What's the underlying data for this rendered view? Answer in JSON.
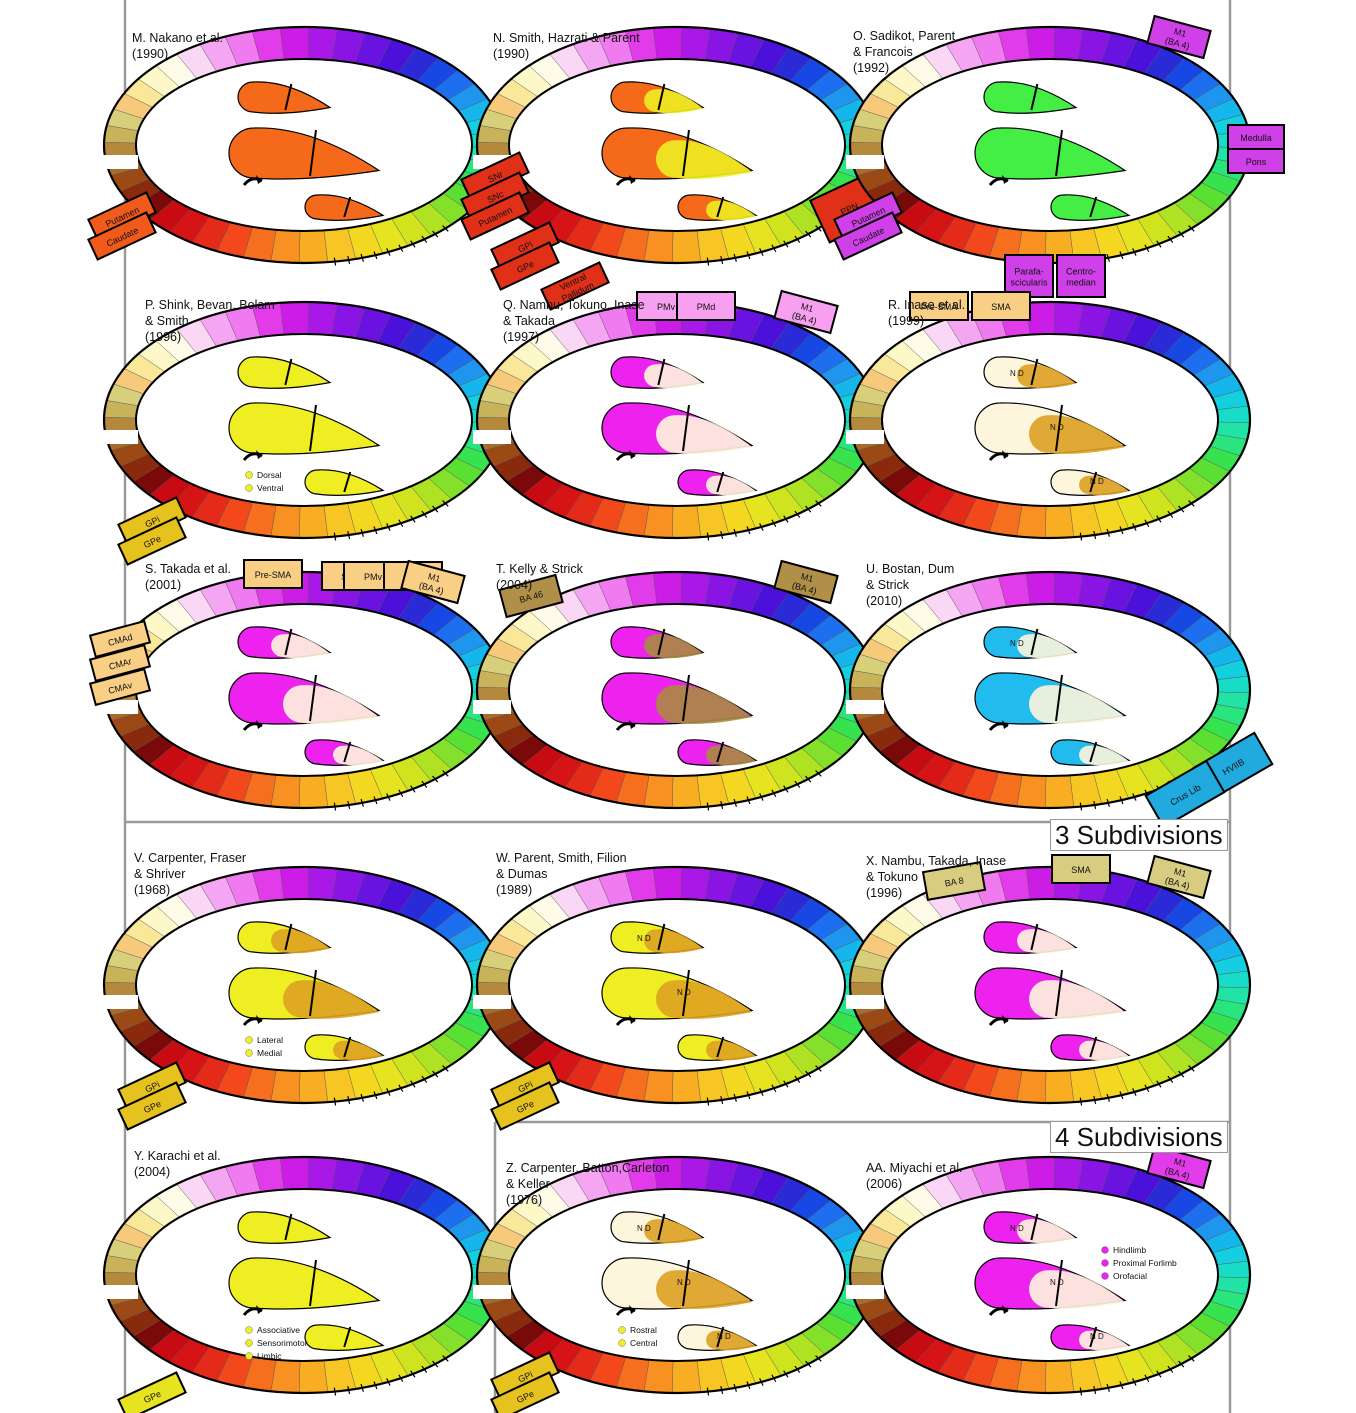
{
  "sections": {
    "three": "3 Subdivisions",
    "four": "4 Subdivisions"
  },
  "ring_colors": [
    "#7a0a0a",
    "#8a2a0c",
    "#9b4a16",
    "#a96b2c",
    "#b5893d",
    "#c9b35a",
    "#d8cf7a",
    "#f7c97a",
    "#f9e79a",
    "#fdf8c8",
    "#fefce9",
    "#fbd7f6",
    "#f5a6f2",
    "#f07aef",
    "#e23cea",
    "#cc1de6",
    "#a918e6",
    "#8a14e3",
    "#6a12e0",
    "#4b10d9",
    "#2a2ad6",
    "#1848e4",
    "#1e6ff0",
    "#1e96ee",
    "#15b6ec",
    "#13cfe0",
    "#18dcc7",
    "#20e3a5",
    "#2ae47d",
    "#37e24f",
    "#5ae033",
    "#84e02a",
    "#aee223",
    "#cfe31f",
    "#e6e320",
    "#f3d721",
    "#f8c624",
    "#f9ad22",
    "#f89121",
    "#f66f1e",
    "#f2481c",
    "#e42a18",
    "#d61415",
    "#c80b12"
  ],
  "colors": {
    "orange": "#f56a1a",
    "green": "#44ee44",
    "yellow": "#eeee22",
    "magenta": "#ee22ee",
    "blue": "#22bbee",
    "olive": "#a88a40",
    "cream": "#fdf6dc",
    "amber": "#dda122"
  },
  "panels": [
    {
      "id": "M",
      "title": "M. Nakano et al.\n(1990)",
      "labels": [
        {
          "text": "Putamen"
        },
        {
          "text": "Caudate"
        }
      ]
    },
    {
      "id": "N",
      "title": "N. Smith, Hazrati & Parent\n(1990)",
      "labels": [
        {
          "text": "SNr"
        },
        {
          "text": "SNc"
        },
        {
          "text": "Putamen"
        },
        {
          "text": "GPi"
        },
        {
          "text": "GPe"
        },
        {
          "text": "Ventral\nPallidum"
        },
        {
          "text": "PPN"
        }
      ]
    },
    {
      "id": "O",
      "title": "O. Sadikot, Parent\n& Francois\n(1992)",
      "labels": [
        {
          "text": "M1\n(BA 4)"
        },
        {
          "text": "Medulla"
        },
        {
          "text": "Pons"
        },
        {
          "text": "Putamen"
        },
        {
          "text": "Caudate"
        },
        {
          "text": "Parafa-\nscicularis"
        },
        {
          "text": "Centro-\nmedian"
        }
      ]
    },
    {
      "id": "P",
      "title": "P. Shink, Bevan, Bolam\n& Smith\n(1996)",
      "labels": [
        {
          "text": "GPi"
        },
        {
          "text": "GPe"
        }
      ],
      "legend": [
        "Dorsal",
        "Ventral"
      ]
    },
    {
      "id": "Q",
      "title": "Q. Nambu, Tokuno, Inase\n& Takada\n(1997)",
      "labels": [
        {
          "text": "PMv"
        },
        {
          "text": "PMd"
        },
        {
          "text": "M1\n(BA 4)"
        }
      ]
    },
    {
      "id": "R",
      "title": "R. Inase et al.\n(1999)",
      "labels": [
        {
          "text": "Pre-SMA"
        },
        {
          "text": "SMA"
        }
      ],
      "nd": [
        "N D",
        "N D",
        "N D"
      ]
    },
    {
      "id": "S",
      "title": "S. Takada et al.\n(2001)",
      "labels": [
        {
          "text": "Pre-SMA"
        },
        {
          "text": "SMA"
        },
        {
          "text": "PMv"
        },
        {
          "text": "PMd"
        },
        {
          "text": "M1\n(BA 4)"
        },
        {
          "text": "CMAd"
        },
        {
          "text": "CMAr"
        },
        {
          "text": "CMAv"
        }
      ]
    },
    {
      "id": "T",
      "title": "T. Kelly & Strick\n(2004)",
      "labels": [
        {
          "text": "BA 46"
        },
        {
          "text": "M1\n(BA 4)"
        }
      ]
    },
    {
      "id": "U",
      "title": "U. Bostan, Dum\n& Strick\n(2010)",
      "labels": [
        {
          "text": "HVIIB"
        },
        {
          "text": "Crus Lib"
        }
      ],
      "nd": [
        "N D"
      ]
    },
    {
      "id": "V",
      "title": "V. Carpenter, Fraser\n& Shriver\n(1968)",
      "labels": [
        {
          "text": "GPi"
        },
        {
          "text": "GPe"
        }
      ],
      "legend": [
        "Lateral",
        "Medial"
      ]
    },
    {
      "id": "W",
      "title": "W. Parent, Smith, Filion\n& Dumas\n(1989)",
      "labels": [
        {
          "text": "GPi"
        },
        {
          "text": "GPe"
        }
      ],
      "nd": [
        "N D",
        "N D"
      ]
    },
    {
      "id": "X",
      "title": "X. Nambu, Takada, Inase\n& Tokuno\n(1996)",
      "labels": [
        {
          "text": "BA 8"
        },
        {
          "text": "SMA"
        },
        {
          "text": "M1\n(BA 4)"
        }
      ]
    },
    {
      "id": "Y",
      "title": "Y. Karachi et al.\n(2004)",
      "labels": [
        {
          "text": "GPe"
        }
      ],
      "legend": [
        "Associative",
        "Sensorimotor",
        "Limbic"
      ]
    },
    {
      "id": "Z",
      "title": "Z. Carpenter, Batton,Carleton\n& Keller\n(1976)",
      "labels": [
        {
          "text": "GPi"
        },
        {
          "text": "GPe"
        }
      ],
      "legend": [
        "Rostral",
        "Central"
      ],
      "nd": [
        "N D",
        "N D",
        "N D"
      ]
    },
    {
      "id": "AA",
      "title": "AA. Miyachi et al.\n(2006)",
      "labels": [
        {
          "text": "M1\n(BA 4)"
        }
      ],
      "legend": [
        "Hindlimb",
        "Proximal Forlimb",
        "Orofacial"
      ],
      "nd": [
        "N D",
        "N D",
        "N D"
      ]
    }
  ]
}
